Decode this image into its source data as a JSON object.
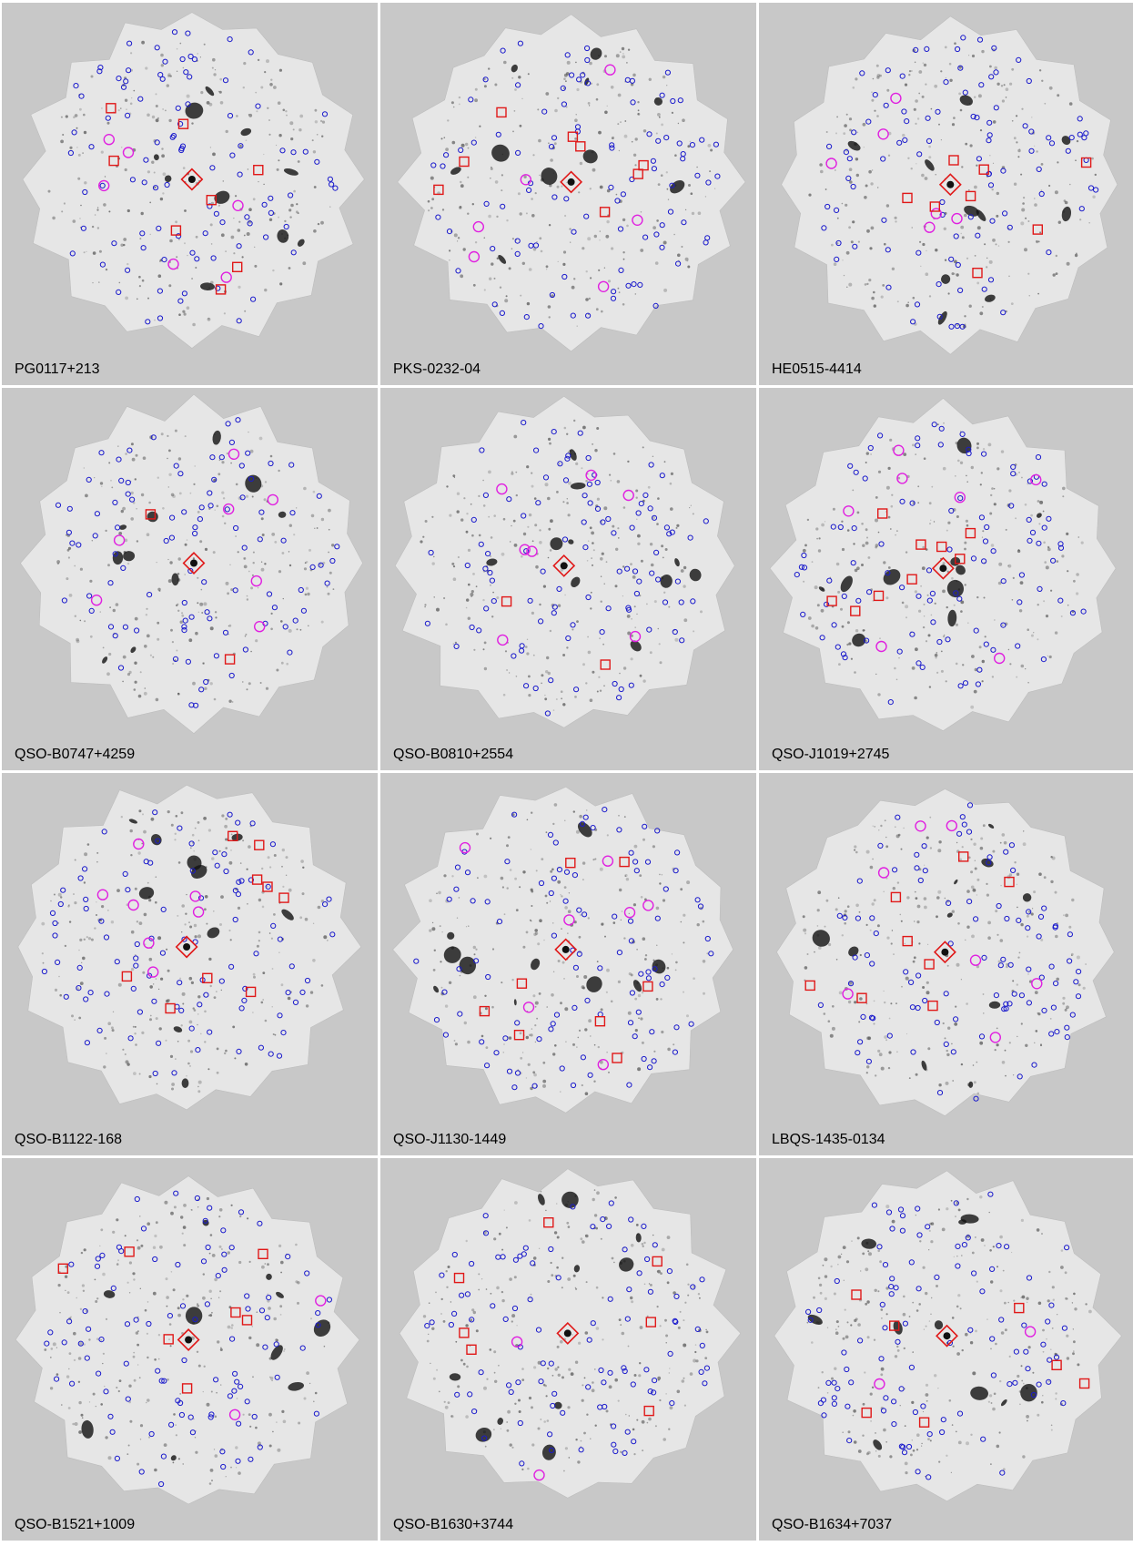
{
  "panels": [
    {
      "label": "PG0117+213"
    },
    {
      "label": "PKS-0232-04"
    },
    {
      "label": "HE0515-4414"
    },
    {
      "label": "QSO-B0747+4259"
    },
    {
      "label": "QSO-B0810+2554"
    },
    {
      "label": "QSO-J1019+2745"
    },
    {
      "label": "QSO-B1122-168"
    },
    {
      "label": "QSO-J1130-1449"
    },
    {
      "label": "LBQS-1435-0134"
    },
    {
      "label": "QSO-B1521+1009"
    },
    {
      "label": "QSO-B1630+3744"
    },
    {
      "label": "QSO-B1634+7037"
    }
  ],
  "colors": {
    "background": "#c8c8c8",
    "field": "#e6e6e6",
    "circle_marker": "#1a1acc",
    "ring_marker": "#e020e0",
    "square_marker": "#e01818",
    "diamond_marker": "#e01818"
  }
}
